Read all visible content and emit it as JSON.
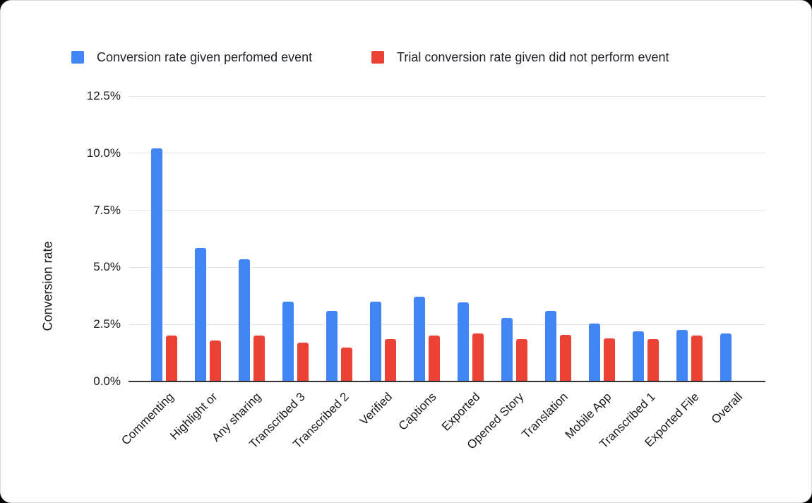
{
  "chart_data": {
    "type": "bar",
    "title": "",
    "xlabel": "",
    "ylabel": "Conversion rate",
    "ylim": [
      0,
      12.5
    ],
    "grid": true,
    "legend_position": "top",
    "yticks": [
      {
        "value": 0,
        "label": "0.0%"
      },
      {
        "value": 2.5,
        "label": "2.5%"
      },
      {
        "value": 5,
        "label": "5.0%"
      },
      {
        "value": 7.5,
        "label": "7.5%"
      },
      {
        "value": 10,
        "label": "10.0%"
      },
      {
        "value": 12.5,
        "label": "12.5%"
      }
    ],
    "categories": [
      "Commenting",
      "Highlight or",
      "Any sharing",
      "Transcribed 3",
      "Transcribed 2",
      "Verified",
      "Captions",
      "Exported",
      "Opened Story",
      "Translation",
      "Mobile App",
      "Transcribed 1",
      "Exported File",
      "Overall"
    ],
    "series": [
      {
        "name": "Conversion rate given perfomed event",
        "color": "#4285f4",
        "values": [
          10.2,
          5.85,
          5.35,
          3.5,
          3.1,
          3.5,
          3.7,
          3.45,
          2.8,
          3.1,
          2.55,
          2.2,
          2.25,
          2.1
        ]
      },
      {
        "name": "Trial conversion rate given did not perform event",
        "color": "#ea4335",
        "values": [
          2.0,
          1.8,
          2.0,
          1.7,
          1.5,
          1.85,
          2.0,
          2.1,
          1.85,
          2.05,
          1.9,
          1.85,
          2.0,
          null
        ]
      }
    ]
  }
}
